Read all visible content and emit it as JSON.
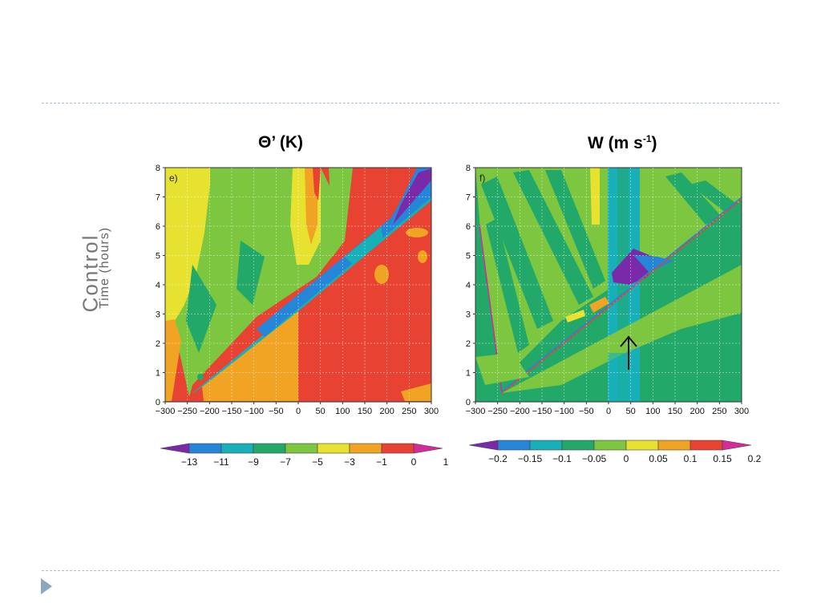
{
  "slide": {
    "row_label": "Control",
    "y_axis_label": "Time (hours)"
  },
  "colors": {
    "rule": "#a9bfcf",
    "nav_arrow": "#8aa8c0"
  },
  "chart_data": [
    {
      "type": "heatmap",
      "panel": "e)",
      "title": "Θ’ (K)",
      "xlabel": "",
      "ylabel": "Time (hours)",
      "xlim": [
        -300,
        300
      ],
      "ylim": [
        0,
        8
      ],
      "x_ticks": [
        "−300",
        "−250",
        "−200",
        "−150",
        "−100",
        "−50",
        "0",
        "50",
        "100",
        "150",
        "200",
        "250",
        "300"
      ],
      "y_ticks": [
        "0",
        "1",
        "2",
        "3",
        "4",
        "5",
        "6",
        "7",
        "8"
      ],
      "colorbar": {
        "labels": [
          "−13",
          "−11",
          "−9",
          "−7",
          "−5",
          "−3",
          "−1",
          "0",
          "1"
        ],
        "colors": [
          "#7a2aa8",
          "#2585d8",
          "#18b0b8",
          "#22a868",
          "#7cc640",
          "#e7e12f",
          "#f1a423",
          "#e84233",
          "#d42a9a"
        ]
      }
    },
    {
      "type": "heatmap",
      "panel": "f)",
      "title": "W (m s",
      "title_sup": "-1",
      "title_end": ")",
      "xlabel": "",
      "ylabel": "",
      "xlim": [
        -300,
        300
      ],
      "ylim": [
        0,
        8
      ],
      "x_ticks": [
        "−300",
        "−250",
        "−200",
        "−150",
        "−100",
        "−50",
        "0",
        "50",
        "100",
        "150",
        "200",
        "250",
        "300"
      ],
      "y_ticks": [
        "0",
        "1",
        "2",
        "3",
        "4",
        "5",
        "6",
        "7",
        "8"
      ],
      "annotation": "arrow at x≈50, t≈1–2 h",
      "colorbar": {
        "labels": [
          "−0.2",
          "−0.15",
          "−0.1",
          "−0.05",
          "0",
          "0.05",
          "0.1",
          "0.15",
          "0.2"
        ],
        "colors": [
          "#7a2aa8",
          "#2585d8",
          "#18b0b8",
          "#22a868",
          "#7cc640",
          "#e7e12f",
          "#f1a423",
          "#e84233",
          "#d42a9a"
        ]
      }
    }
  ]
}
